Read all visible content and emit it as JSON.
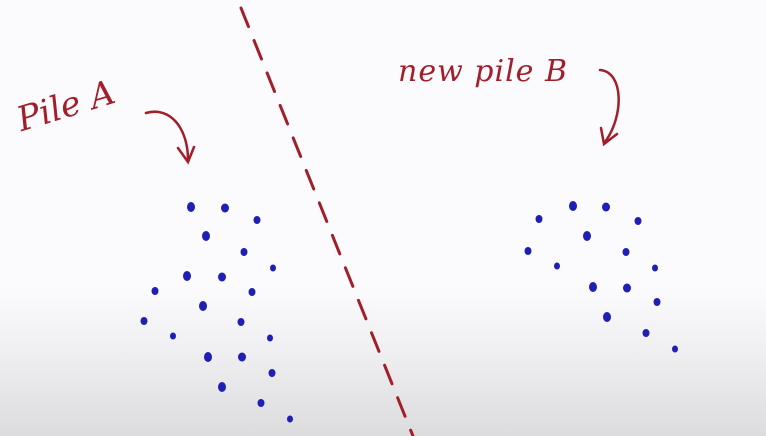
{
  "labels": {
    "pile_a": "Pile A",
    "pile_b": "new pile B"
  },
  "colors": {
    "ink_red": "#a11f2a",
    "dot_blue": "#1f1fb3",
    "background": "#fbfbfd"
  }
}
